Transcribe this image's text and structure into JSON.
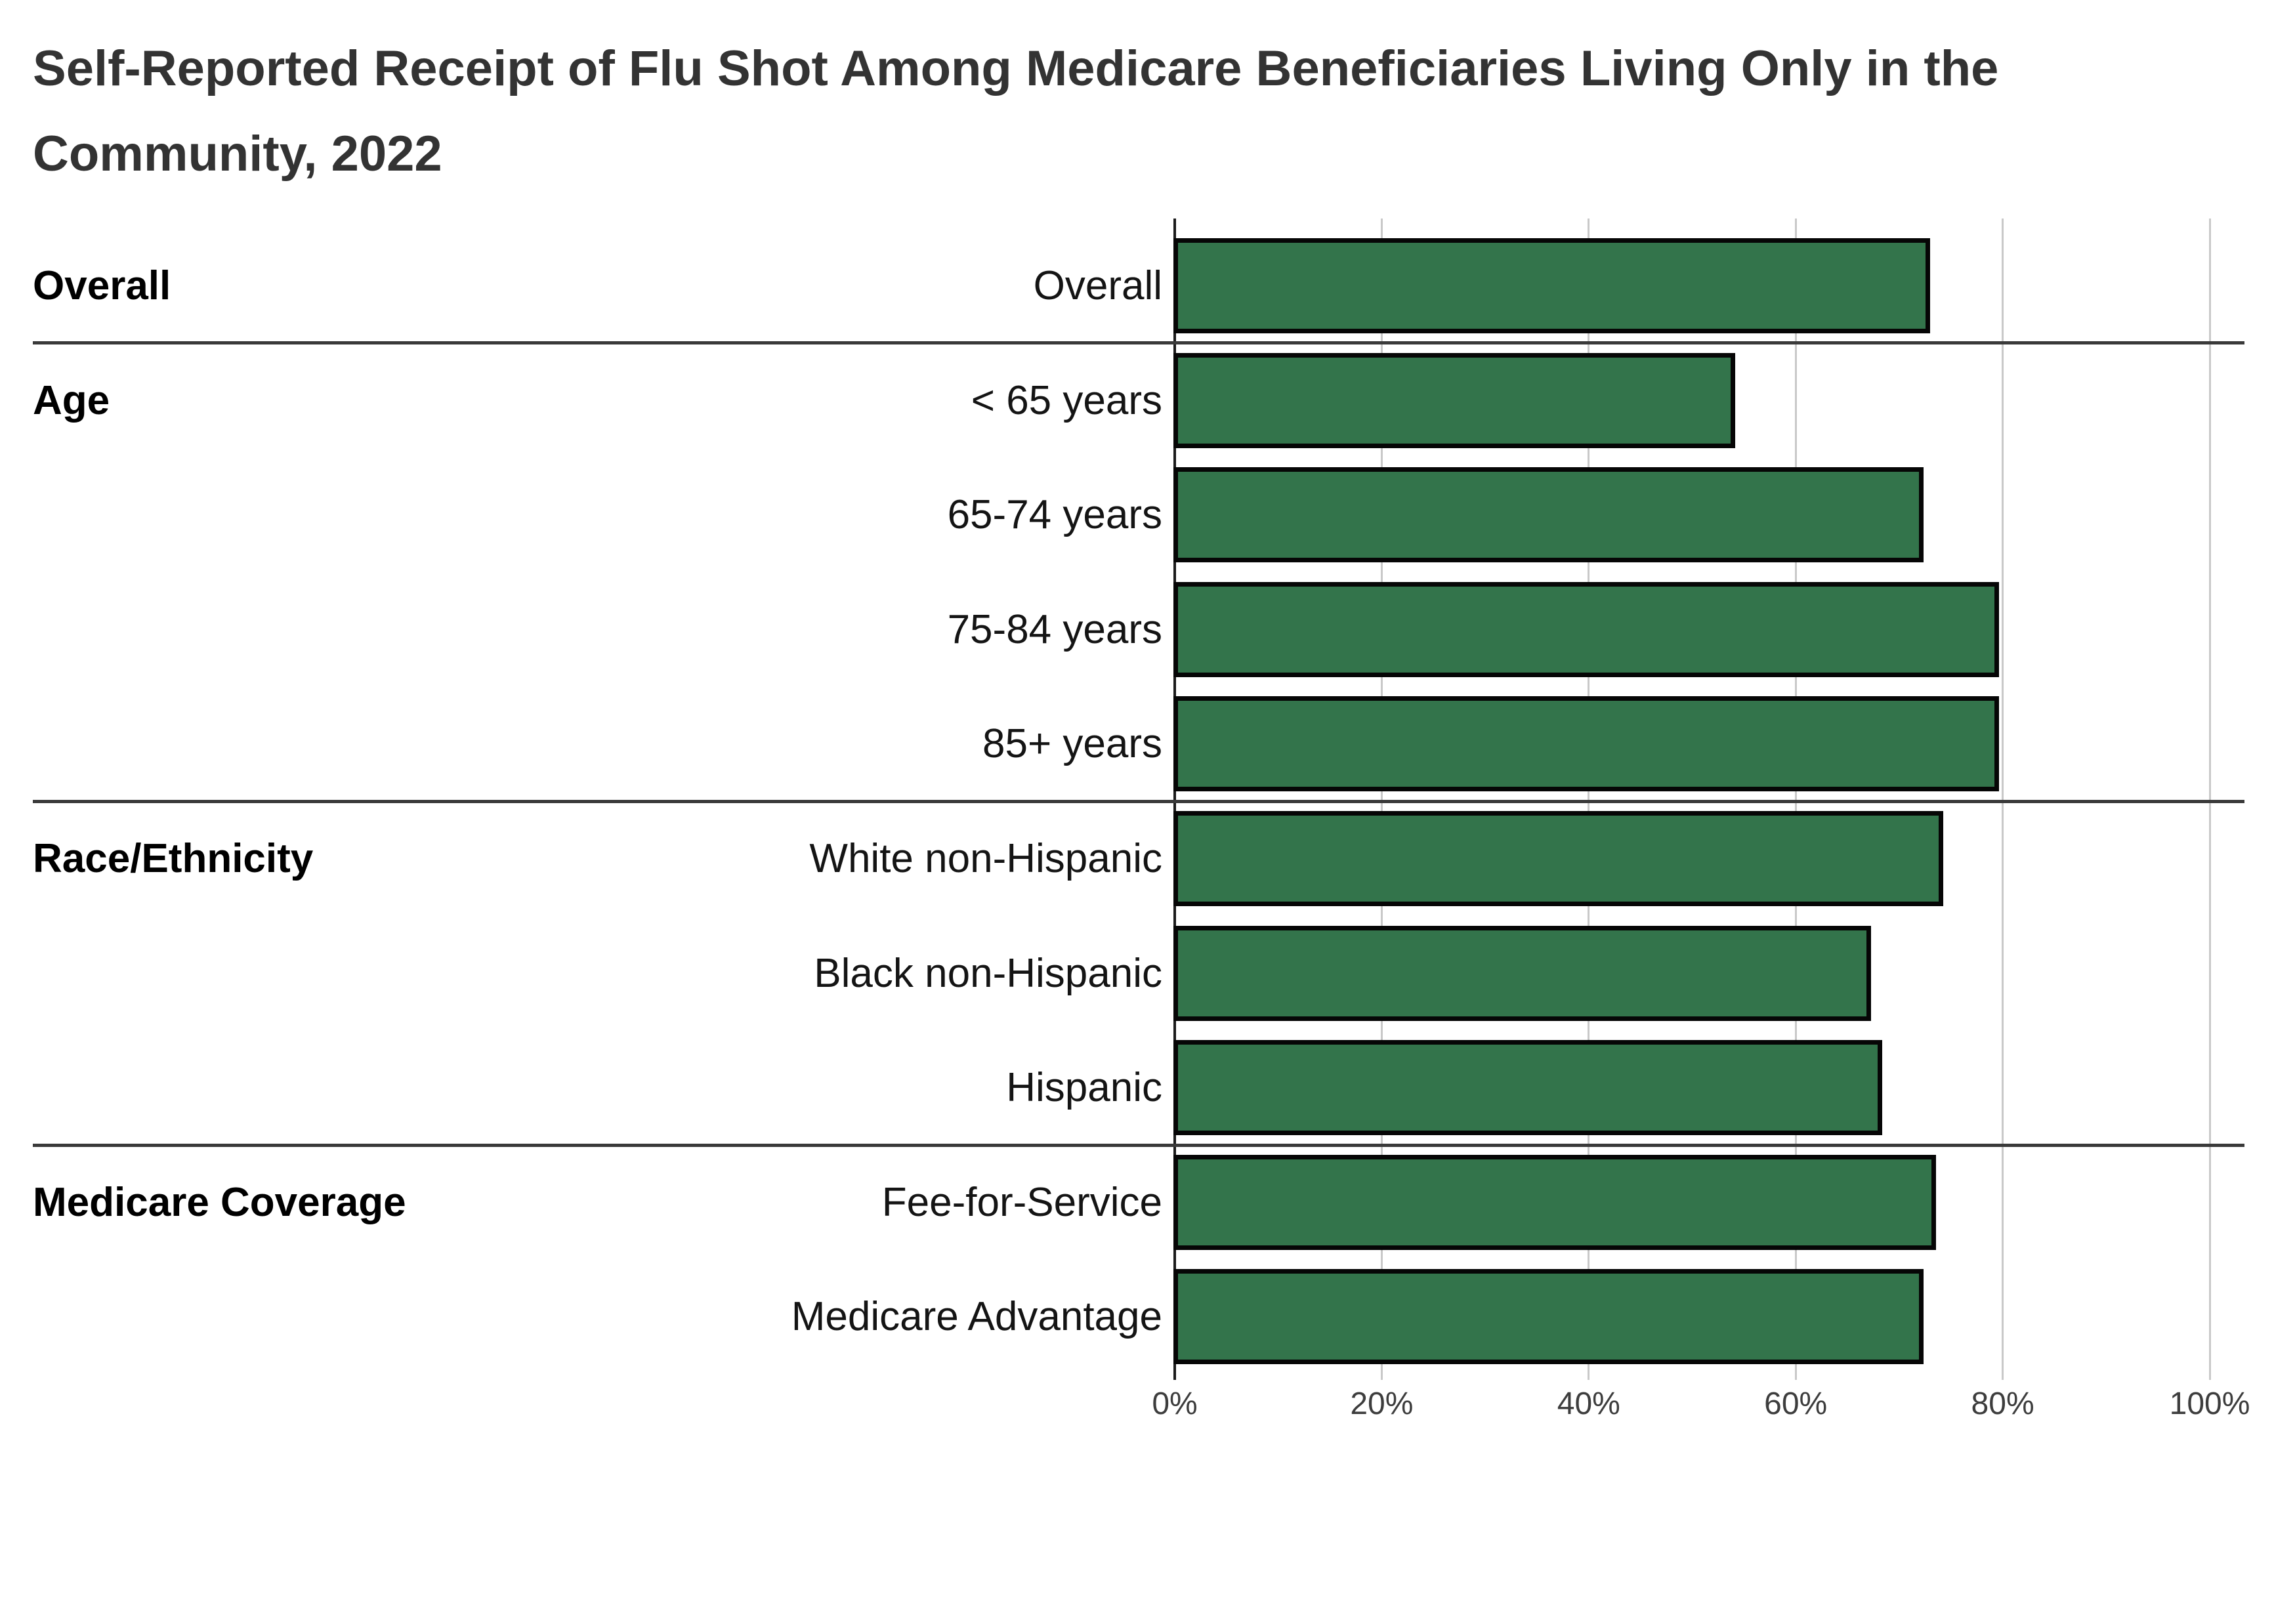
{
  "chart_data": {
    "type": "bar",
    "orientation": "horizontal",
    "title": "Self-Reported Receipt of Flu Shot Among Medicare Beneficiaries Living Only in the Community, 2022",
    "title_lines": [
      "Self-Reported Receipt of Flu Shot Among Medicare Beneficiaries Living Only in the",
      "Community, 2022"
    ],
    "unit": "%",
    "xlim": [
      0,
      100
    ],
    "x_tick_values": [
      0,
      20,
      40,
      60,
      80,
      100
    ],
    "x_tick_labels": [
      "0%",
      "20%",
      "40%",
      "60%",
      "80%",
      "100%"
    ],
    "grid": true,
    "legend": false,
    "bar_color": "#33744B",
    "bar_border_color": "#060606",
    "groups": [
      {
        "label": "Overall",
        "rows": [
          {
            "label": "Overall",
            "value": 73.1
          }
        ]
      },
      {
        "label": "Age",
        "rows": [
          {
            "label": "< 65 years",
            "value": 54.3
          },
          {
            "label": "65-74 years",
            "value": 72.5
          },
          {
            "label": "75-84 years",
            "value": 79.8
          },
          {
            "label": "85+ years",
            "value": 79.8
          }
        ]
      },
      {
        "label": "Race/Ethnicity",
        "rows": [
          {
            "label": "White non-Hispanic",
            "value": 74.4
          },
          {
            "label": "Black non-Hispanic",
            "value": 67.4
          },
          {
            "label": "Hispanic",
            "value": 68.5
          }
        ]
      },
      {
        "label": "Medicare Coverage",
        "rows": [
          {
            "label": "Fee-for-Service",
            "value": 73.7
          },
          {
            "label": "Medicare Advantage",
            "value": 72.5
          }
        ]
      }
    ]
  },
  "colors": {
    "background": "#ffffff",
    "title_text": "#333333",
    "label_text": "#141414",
    "tick_text": "#3d3d3d",
    "gridline": "#c9c9c9",
    "axis_line": "#1c1c1c",
    "separator": "#3a3a3a",
    "bar_fill": "#33744B",
    "bar_border": "#060606"
  }
}
